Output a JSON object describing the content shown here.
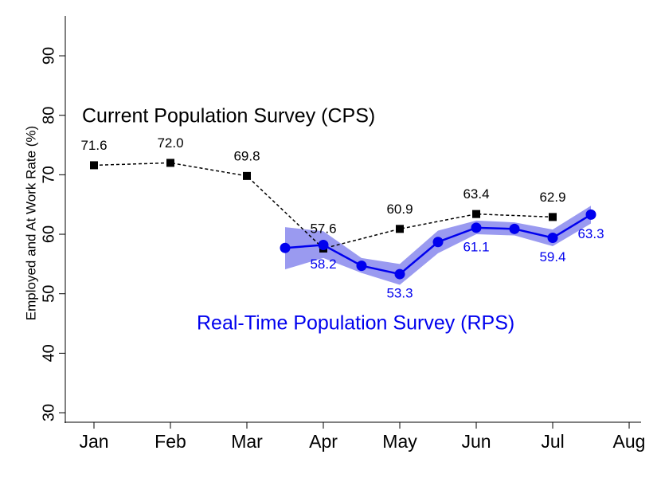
{
  "chart_data": {
    "type": "line",
    "y_label": "Employed and At Work Rate (%)",
    "x": [
      1,
      2,
      3,
      4,
      5,
      6,
      7
    ],
    "xlim": [
      0.625,
      8.156
    ],
    "xticks": [
      {
        "value": 1,
        "label": "Jan"
      },
      {
        "value": 2,
        "label": "Feb"
      },
      {
        "value": 3,
        "label": "Mar"
      },
      {
        "value": 4,
        "label": "Apr"
      },
      {
        "value": 5,
        "label": "May"
      },
      {
        "value": 6,
        "label": "Jun"
      },
      {
        "value": 7,
        "label": "Jul"
      },
      {
        "value": 8,
        "label": "Aug"
      }
    ],
    "ylim": [
      28.4,
      96.7
    ],
    "yticks": [
      30,
      40,
      50,
      60,
      70,
      80,
      90
    ],
    "series": [
      {
        "name": "Current Population Survey (CPS)",
        "color": "#000000",
        "x": [
          1,
          2,
          3,
          4,
          5,
          6,
          7
        ],
        "values": [
          71.6,
          72.0,
          69.8,
          57.6,
          60.9,
          63.4,
          62.9
        ],
        "value_labels": [
          "71.6",
          "72.0",
          "69.8",
          "57.6",
          "60.9",
          "63.4",
          "62.9"
        ]
      },
      {
        "name": "Real-Time Population Survey (RPS)",
        "color": "#0000ee",
        "band_color": "#9a9af0",
        "x": [
          3.5,
          4,
          4.5,
          5,
          5.5,
          6,
          6.5,
          7,
          7.5
        ],
        "values": [
          57.7,
          58.2,
          54.7,
          53.3,
          58.7,
          61.1,
          60.9,
          59.4,
          63.3
        ],
        "lower": [
          54.1,
          56.0,
          53.5,
          51.5,
          56.8,
          60.0,
          59.8,
          58.0,
          61.8
        ],
        "upper": [
          61.2,
          60.5,
          56.0,
          55.0,
          60.6,
          62.3,
          62.0,
          60.8,
          64.8
        ],
        "value_labels": [
          null,
          "58.2",
          null,
          "53.3",
          null,
          "61.1",
          null,
          "59.4",
          "63.3"
        ]
      }
    ]
  }
}
